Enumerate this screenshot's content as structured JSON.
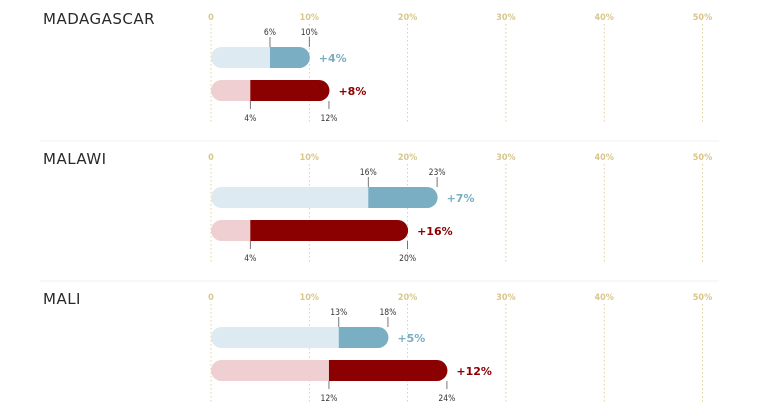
{
  "chart_data": {
    "type": "bar",
    "ticks": [
      0,
      10,
      20,
      30,
      40,
      50
    ],
    "tick_labels": [
      "0",
      "10%",
      "20%",
      "30%",
      "40%",
      "50%"
    ],
    "xlim": [
      0,
      50
    ],
    "grid": true,
    "colors": {
      "blue_light": "#deeaf2",
      "blue_dark": "#7aaec2",
      "red_light": "#efcfd2",
      "red_dark": "#8b0000",
      "tick": "#d8c68a"
    },
    "countries": [
      {
        "name": "MADAGASCAR",
        "blue": {
          "start": 6,
          "end": 10,
          "start_label": "6%",
          "end_label": "10%",
          "delta": "+4%"
        },
        "red": {
          "start": 4,
          "end": 12,
          "start_label": "4%",
          "end_label": "12%",
          "delta": "+8%"
        }
      },
      {
        "name": "MALAWI",
        "blue": {
          "start": 16,
          "end": 23,
          "start_label": "16%",
          "end_label": "23%",
          "delta": "+7%"
        },
        "red": {
          "start": 4,
          "end": 20,
          "start_label": "4%",
          "end_label": "20%",
          "delta": "+16%"
        }
      },
      {
        "name": "MALI",
        "blue": {
          "start": 13,
          "end": 18,
          "start_label": "13%",
          "end_label": "18%",
          "delta": "+5%"
        },
        "red": {
          "start": 12,
          "end": 24,
          "start_label": "12%",
          "end_label": "24%",
          "delta": "+12%"
        }
      }
    ]
  }
}
